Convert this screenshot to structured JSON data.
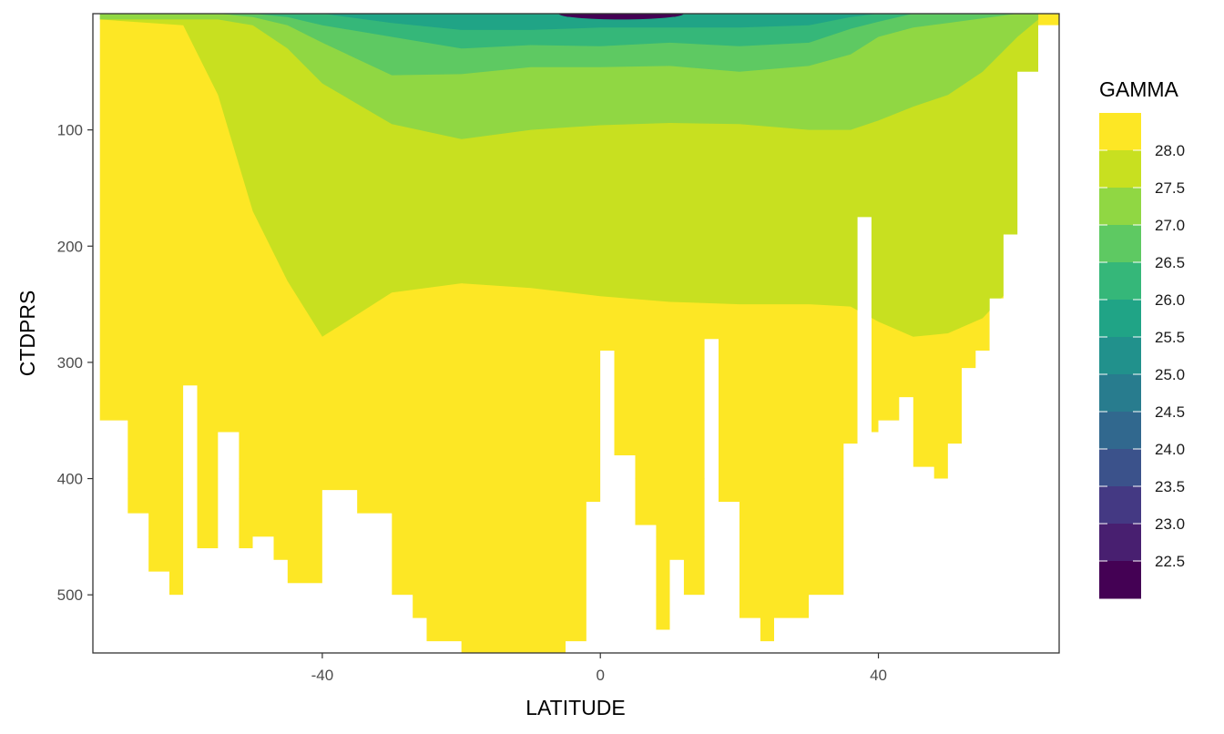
{
  "chart_data": {
    "type": "contour",
    "xlabel": "LATITUDE",
    "ylabel": "CTDPRS",
    "xlim": [
      -73,
      66
    ],
    "ylim": [
      550,
      0
    ],
    "y_reversed": true,
    "x_ticks": [
      -40,
      0,
      40
    ],
    "x_tick_labels": [
      "-40",
      "0",
      "40"
    ],
    "y_ticks": [
      100,
      200,
      300,
      400,
      500
    ],
    "y_tick_labels": [
      "100",
      "200",
      "300",
      "400",
      "500"
    ],
    "grid": true,
    "legend": {
      "title": "GAMMA",
      "placement": "right",
      "breaks": [
        "28.0",
        "27.5",
        "27.0",
        "26.5",
        "26.0",
        "25.5",
        "25.0",
        "24.5",
        "24.0",
        "23.5",
        "23.0",
        "22.5"
      ],
      "colors": [
        "#fde725",
        "#c8e020",
        "#90d743",
        "#5ec962",
        "#35b779",
        "#20a486",
        "#21918c",
        "#287c8e",
        "#31688e",
        "#3b528b",
        "#443983",
        "#481f70",
        "#440154"
      ]
    },
    "levels": [
      {
        "range": ">28.0",
        "color": "#fde725"
      },
      {
        "range": "27.5-28.0",
        "color": "#c8e020"
      },
      {
        "range": "27.0-27.5",
        "color": "#90d743"
      },
      {
        "range": "26.5-27.0",
        "color": "#5ec962"
      },
      {
        "range": "26.0-26.5",
        "color": "#35b779"
      },
      {
        "range": "25.5-26.0",
        "color": "#20a486"
      },
      {
        "range": "25.0-25.5",
        "color": "#21918c"
      },
      {
        "range": "22.0-24.5",
        "color": "#440154"
      }
    ],
    "isopycnal_depths": {
      "lat": [
        -72,
        -60,
        -55,
        -50,
        -45,
        -40,
        -30,
        -20,
        -10,
        0,
        10,
        20,
        30,
        36,
        40,
        45,
        50,
        55,
        60,
        63
      ],
      "gamma_28_0_depth": [
        5,
        10,
        70,
        170,
        230,
        278,
        240,
        232,
        236,
        243,
        248,
        250,
        250,
        252,
        265,
        278,
        275,
        262,
        230,
        180
      ],
      "gamma_27_5_depth": [
        5,
        5,
        5,
        10,
        30,
        60,
        95,
        108,
        100,
        96,
        94,
        95,
        100,
        100,
        92,
        80,
        70,
        50,
        20,
        5
      ],
      "gamma_27_0_depth": [
        0,
        0,
        0,
        3,
        10,
        25,
        53,
        52,
        46,
        46,
        45,
        50,
        45,
        35,
        20,
        12,
        8,
        4,
        0,
        0
      ],
      "gamma_26_5_depth": [
        0,
        0,
        0,
        0,
        3,
        10,
        20,
        30,
        27,
        28,
        25,
        28,
        25,
        13,
        7,
        0,
        0,
        0,
        0,
        0
      ],
      "gamma_26_0_depth": [
        0,
        0,
        0,
        0,
        0,
        0,
        8,
        14,
        14,
        12,
        12,
        12,
        10,
        3,
        0,
        0,
        0,
        0,
        0,
        0
      ]
    },
    "bottom_mask": {
      "lat": [
        -72,
        -68,
        -65,
        -62,
        -60,
        -58,
        -55,
        -52,
        -50,
        -47,
        -45,
        -40,
        -35,
        -30,
        -27,
        -25,
        -22,
        -20,
        -15,
        -10,
        -5,
        -2,
        0,
        2,
        5,
        8,
        10,
        12,
        15,
        17,
        20,
        23,
        25,
        30,
        35,
        37,
        39,
        40,
        43,
        45,
        48,
        50,
        52,
        54,
        56,
        58,
        60,
        63
      ],
      "max_depth": [
        350,
        430,
        480,
        500,
        320,
        460,
        360,
        460,
        450,
        470,
        490,
        410,
        430,
        500,
        520,
        540,
        540,
        550,
        550,
        550,
        540,
        420,
        290,
        380,
        440,
        530,
        470,
        500,
        280,
        420,
        520,
        540,
        520,
        500,
        370,
        175,
        360,
        350,
        330,
        390,
        400,
        370,
        305,
        290,
        245,
        190,
        50,
        10
      ]
    }
  }
}
